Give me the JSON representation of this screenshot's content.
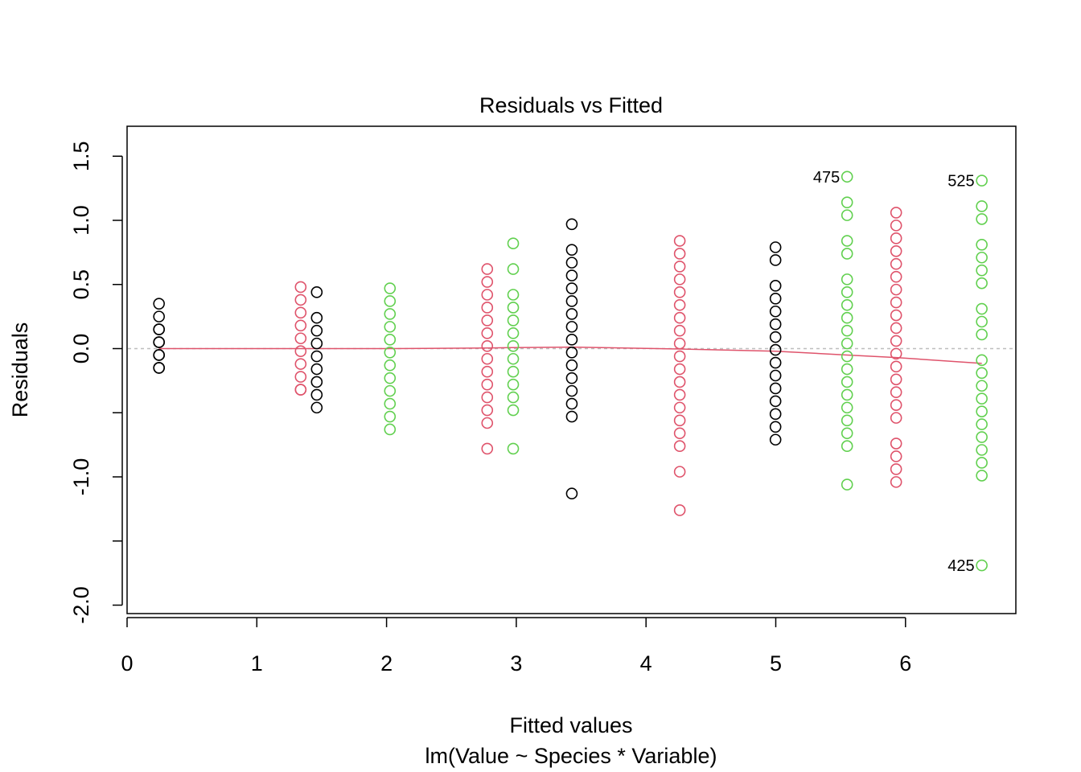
{
  "chart_data": {
    "type": "scatter",
    "title": "Residuals vs Fitted",
    "xlabel": "Fitted values",
    "subtitle": "lm(Value ~ Species * Variable)",
    "ylabel": "Residuals",
    "xlim": [
      0,
      6.85
    ],
    "ylim": [
      -2.07,
      1.73
    ],
    "x_ticks": [
      0,
      1,
      2,
      3,
      4,
      5,
      6
    ],
    "x_tick_labels": [
      "0",
      "1",
      "2",
      "3",
      "4",
      "5",
      "6"
    ],
    "y_ticks": [
      -2.0,
      -1.5,
      -1.0,
      -0.5,
      0.0,
      0.5,
      1.0,
      1.5
    ],
    "y_tick_labels": [
      "-2.0",
      "",
      "-1.0",
      "",
      "0.0",
      "0.5",
      "1.0",
      "1.5"
    ],
    "reference_line": 0,
    "grid": false,
    "colors": {
      "black": "#000000",
      "red": "#DF536B",
      "green": "#61D04F",
      "ref": "#BEBEBE"
    },
    "series": [
      {
        "name": "group-0.25",
        "color": "black",
        "x": 0.246,
        "residuals": [
          0.35,
          0.25,
          0.15,
          0.15,
          0.05,
          0.05,
          -0.05,
          -0.05,
          -0.15,
          -0.15
        ]
      },
      {
        "name": "group-1.34",
        "color": "red",
        "x": 1.338,
        "residuals": [
          0.48,
          0.38,
          0.28,
          0.18,
          0.08,
          -0.02,
          -0.12,
          -0.22,
          -0.32,
          -0.32
        ]
      },
      {
        "name": "group-1.47",
        "color": "black",
        "x": 1.462,
        "residuals": [
          0.44,
          0.24,
          0.14,
          0.04,
          -0.06,
          -0.16,
          -0.26,
          -0.36,
          -0.46
        ]
      },
      {
        "name": "group-2.03",
        "color": "green",
        "x": 2.026,
        "residuals": [
          0.47,
          0.37,
          0.27,
          0.17,
          0.07,
          -0.03,
          -0.13,
          -0.23,
          -0.33,
          -0.43,
          -0.53,
          -0.63
        ]
      },
      {
        "name": "group-2.78",
        "color": "red",
        "x": 2.776,
        "residuals": [
          0.62,
          0.52,
          0.42,
          0.32,
          0.22,
          0.12,
          0.02,
          -0.08,
          -0.18,
          -0.28,
          -0.38,
          -0.48,
          -0.58,
          -0.78
        ]
      },
      {
        "name": "group-2.98",
        "color": "green",
        "x": 2.976,
        "residuals": [
          0.82,
          0.62,
          0.42,
          0.32,
          0.22,
          0.12,
          0.02,
          -0.08,
          -0.18,
          -0.28,
          -0.38,
          -0.48,
          -0.78
        ]
      },
      {
        "name": "group-3.43",
        "color": "black",
        "x": 3.428,
        "residuals": [
          0.97,
          0.77,
          0.67,
          0.57,
          0.47,
          0.37,
          0.27,
          0.17,
          0.07,
          -0.03,
          -0.13,
          -0.23,
          -0.33,
          -0.43,
          -0.53,
          -1.13
        ]
      },
      {
        "name": "group-4.26",
        "color": "red",
        "x": 4.26,
        "residuals": [
          0.84,
          0.74,
          0.64,
          0.54,
          0.44,
          0.34,
          0.24,
          0.14,
          0.04,
          -0.06,
          -0.16,
          -0.26,
          -0.36,
          -0.46,
          -0.56,
          -0.66,
          -0.76,
          -0.96,
          -1.26
        ]
      },
      {
        "name": "group-5.00",
        "color": "black",
        "x": 4.998,
        "residuals": [
          0.79,
          0.69,
          0.49,
          0.39,
          0.29,
          0.19,
          0.09,
          -0.01,
          -0.11,
          -0.21,
          -0.31,
          -0.41,
          -0.51,
          -0.61,
          -0.71
        ]
      },
      {
        "name": "group-5.55",
        "color": "green",
        "x": 5.55,
        "residuals": [
          1.34,
          1.14,
          1.04,
          0.84,
          0.74,
          0.54,
          0.44,
          0.34,
          0.24,
          0.14,
          0.04,
          -0.06,
          -0.16,
          -0.26,
          -0.36,
          -0.46,
          -0.56,
          -0.66,
          -0.76,
          -1.06
        ],
        "labels": {
          "0": "475"
        }
      },
      {
        "name": "group-5.93",
        "color": "red",
        "x": 5.928,
        "residuals": [
          1.06,
          0.96,
          0.86,
          0.76,
          0.66,
          0.56,
          0.46,
          0.36,
          0.26,
          0.16,
          0.06,
          -0.04,
          -0.14,
          -0.24,
          -0.34,
          -0.44,
          -0.54,
          -0.74,
          -0.84,
          -0.94,
          -1.04
        ]
      },
      {
        "name": "group-6.59",
        "color": "green",
        "x": 6.588,
        "residuals": [
          1.31,
          1.11,
          1.01,
          0.81,
          0.71,
          0.61,
          0.51,
          0.31,
          0.21,
          0.11,
          -0.09,
          -0.19,
          -0.29,
          -0.39,
          -0.49,
          -0.59,
          -0.69,
          -0.79,
          -0.89,
          -0.99,
          -1.69
        ],
        "labels": {
          "0": "525",
          "20": "425"
        }
      }
    ],
    "smoother": {
      "color": "red",
      "x": [
        0.246,
        1.338,
        1.462,
        2.026,
        2.776,
        2.976,
        3.428,
        4.26,
        4.998,
        5.55,
        5.928,
        6.588
      ],
      "y": [
        0.0,
        0.0,
        0.0,
        0.0,
        0.005,
        0.008,
        0.012,
        -0.003,
        -0.02,
        -0.05,
        -0.07,
        -0.115
      ]
    }
  }
}
